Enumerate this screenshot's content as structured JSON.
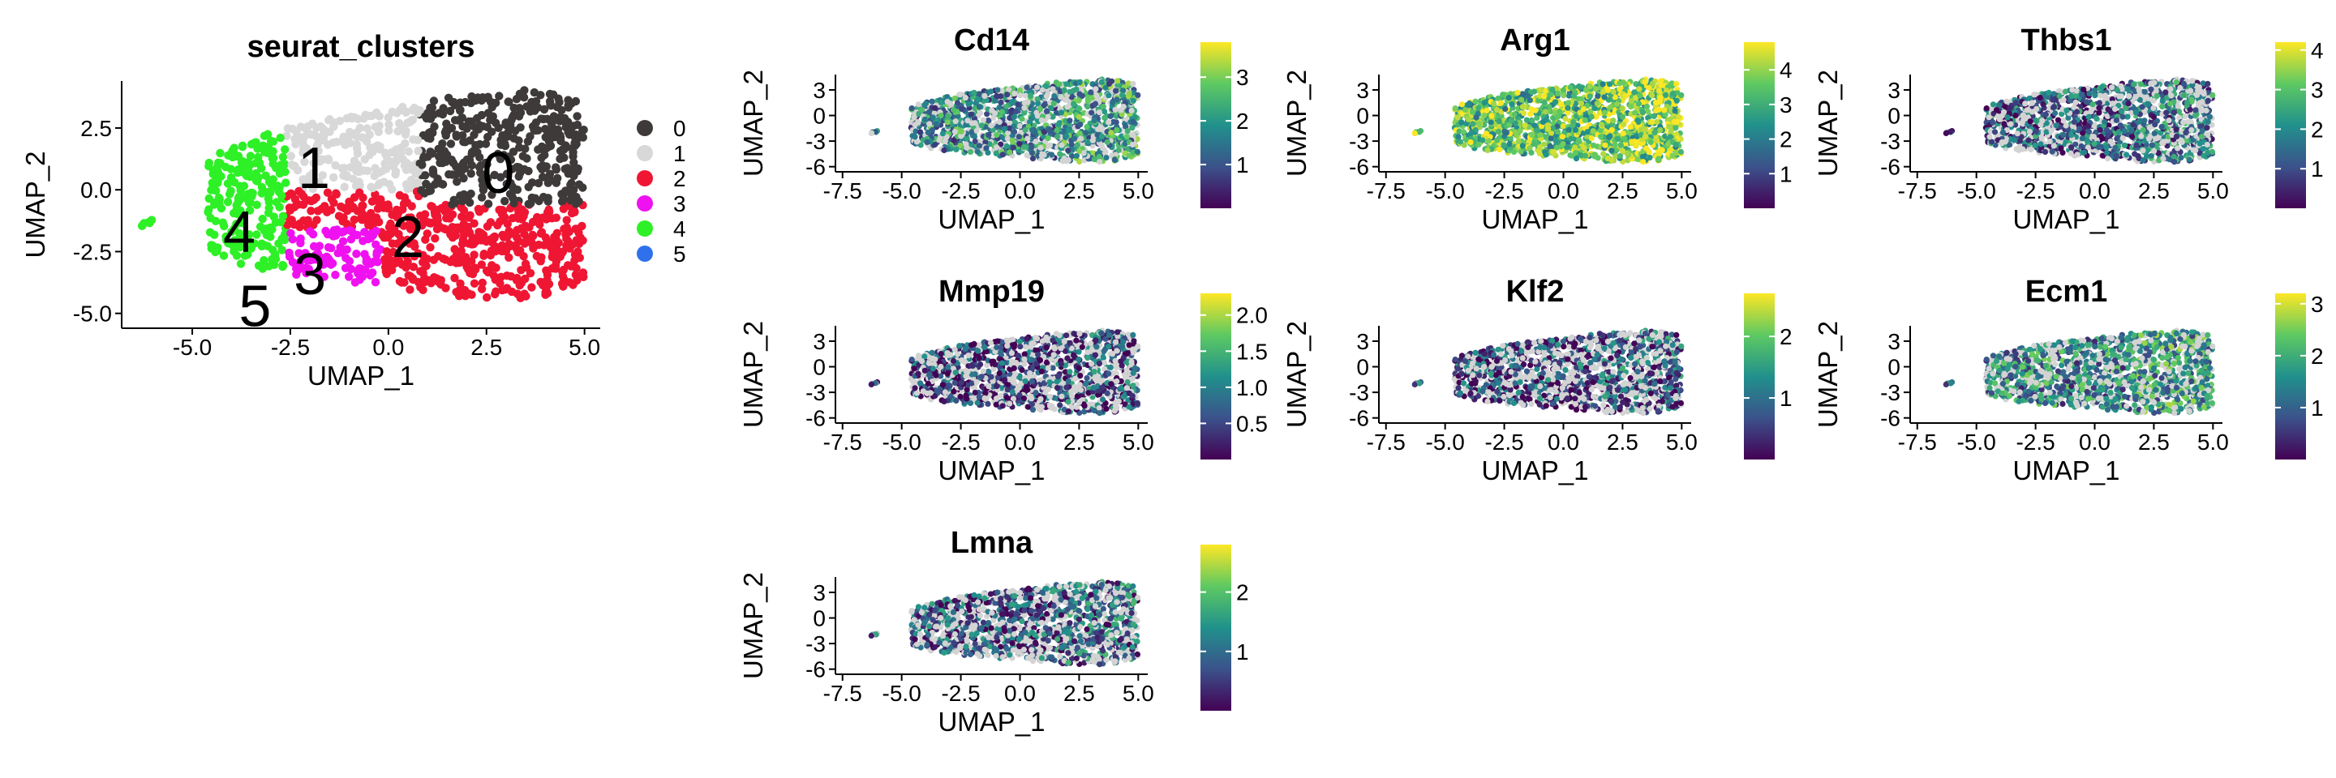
{
  "colors": {
    "clusters": [
      "#3e3a3a",
      "#d8d8d8",
      "#ef1633",
      "#ef11ef",
      "#2ef026",
      "#2f71ec"
    ],
    "viridis": [
      "#440154",
      "#3b528b",
      "#21918c",
      "#5ec962",
      "#fde725"
    ],
    "background_cells": "#d3d3d3"
  },
  "chart_data": [
    {
      "type": "scatter",
      "title": "seurat_clusters",
      "xlabel": "UMAP_1",
      "ylabel": "UMAP_2",
      "xlim": [
        -6.8,
        5.4
      ],
      "ylim": [
        -5.6,
        4.4
      ],
      "x_ticks": [
        "-5.0",
        "-2.5",
        "0.0",
        "2.5",
        "5.0"
      ],
      "y_ticks": [
        "-5.0",
        "-2.5",
        "0.0",
        "2.5"
      ],
      "legend_position": "right",
      "legend": [
        "0",
        "1",
        "2",
        "3",
        "4",
        "5"
      ],
      "cluster_labels": [
        {
          "label": "0",
          "x": 2.8,
          "y": 0.7
        },
        {
          "label": "1",
          "x": -1.9,
          "y": 0.9
        },
        {
          "label": "2",
          "x": 0.5,
          "y": -1.9
        },
        {
          "label": "3",
          "x": -2.0,
          "y": -3.4
        },
        {
          "label": "4",
          "x": -3.8,
          "y": -1.7
        },
        {
          "label": "5",
          "x": -3.4,
          "y": -4.7
        }
      ]
    },
    {
      "type": "scatter",
      "title": "Cd14",
      "xlabel": "UMAP_1",
      "ylabel": "UMAP_2",
      "xlim": [
        -7.8,
        5.4
      ],
      "ylim": [
        -6.6,
        4.8
      ],
      "x_ticks": [
        "-7.5",
        "-5.0",
        "-2.5",
        "0.0",
        "2.5",
        "5.0"
      ],
      "y_ticks": [
        "3",
        "0",
        "-3",
        "-6"
      ],
      "colorbar": {
        "max": 3.8,
        "ticks": [
          "1",
          "2",
          "3"
        ]
      },
      "mean_level": 0.45
    },
    {
      "type": "scatter",
      "title": "Arg1",
      "xlabel": "UMAP_1",
      "ylabel": "UMAP_2",
      "xlim": [
        -7.8,
        5.4
      ],
      "ylim": [
        -6.6,
        4.8
      ],
      "x_ticks": [
        "-7.5",
        "-5.0",
        "-2.5",
        "0.0",
        "2.5",
        "5.0"
      ],
      "y_ticks": [
        "3",
        "0",
        "-3",
        "-6"
      ],
      "colorbar": {
        "max": 4.8,
        "ticks": [
          "1",
          "2",
          "3",
          "4"
        ]
      },
      "mean_level": 0.68
    },
    {
      "type": "scatter",
      "title": "Thbs1",
      "xlabel": "UMAP_1",
      "ylabel": "UMAP_2",
      "xlim": [
        -7.8,
        5.4
      ],
      "ylim": [
        -6.6,
        4.8
      ],
      "x_ticks": [
        "-7.5",
        "-5.0",
        "-2.5",
        "0.0",
        "2.5",
        "5.0"
      ],
      "y_ticks": [
        "3",
        "0",
        "-3",
        "-6"
      ],
      "colorbar": {
        "max": 4.2,
        "ticks": [
          "1",
          "2",
          "3",
          "4"
        ]
      },
      "mean_level": 0.3
    },
    {
      "type": "scatter",
      "title": "Mmp19",
      "xlabel": "UMAP_1",
      "ylabel": "UMAP_2",
      "xlim": [
        -7.8,
        5.4
      ],
      "ylim": [
        -6.6,
        4.8
      ],
      "x_ticks": [
        "-7.5",
        "-5.0",
        "-2.5",
        "0.0",
        "2.5",
        "5.0"
      ],
      "y_ticks": [
        "3",
        "0",
        "-3",
        "-6"
      ],
      "colorbar": {
        "max": 2.3,
        "ticks": [
          "0.5",
          "1.0",
          "1.5",
          "2.0"
        ]
      },
      "mean_level": 0.18
    },
    {
      "type": "scatter",
      "title": "Klf2",
      "xlabel": "UMAP_1",
      "ylabel": "UMAP_2",
      "xlim": [
        -7.8,
        5.4
      ],
      "ylim": [
        -6.6,
        4.8
      ],
      "x_ticks": [
        "-7.5",
        "-5.0",
        "-2.5",
        "0.0",
        "2.5",
        "5.0"
      ],
      "y_ticks": [
        "3",
        "0",
        "-3",
        "-6"
      ],
      "colorbar": {
        "max": 2.7,
        "ticks": [
          "1",
          "2"
        ]
      },
      "mean_level": 0.22
    },
    {
      "type": "scatter",
      "title": "Ecm1",
      "xlabel": "UMAP_1",
      "ylabel": "UMAP_2",
      "xlim": [
        -7.8,
        5.4
      ],
      "ylim": [
        -6.6,
        4.8
      ],
      "x_ticks": [
        "-7.5",
        "-5.0",
        "-2.5",
        "0.0",
        "2.5",
        "5.0"
      ],
      "y_ticks": [
        "3",
        "0",
        "-3",
        "-6"
      ],
      "colorbar": {
        "max": 3.2,
        "ticks": [
          "1",
          "2",
          "3"
        ]
      },
      "mean_level": 0.45
    },
    {
      "type": "scatter",
      "title": "Lmna",
      "xlabel": "UMAP_1",
      "ylabel": "UMAP_2",
      "xlim": [
        -7.8,
        5.4
      ],
      "ylim": [
        -6.6,
        4.8
      ],
      "x_ticks": [
        "-7.5",
        "-5.0",
        "-2.5",
        "0.0",
        "2.5",
        "5.0"
      ],
      "y_ticks": [
        "3",
        "0",
        "-3",
        "-6"
      ],
      "colorbar": {
        "max": 2.8,
        "ticks": [
          "1",
          "2"
        ]
      },
      "mean_level": 0.25
    }
  ]
}
